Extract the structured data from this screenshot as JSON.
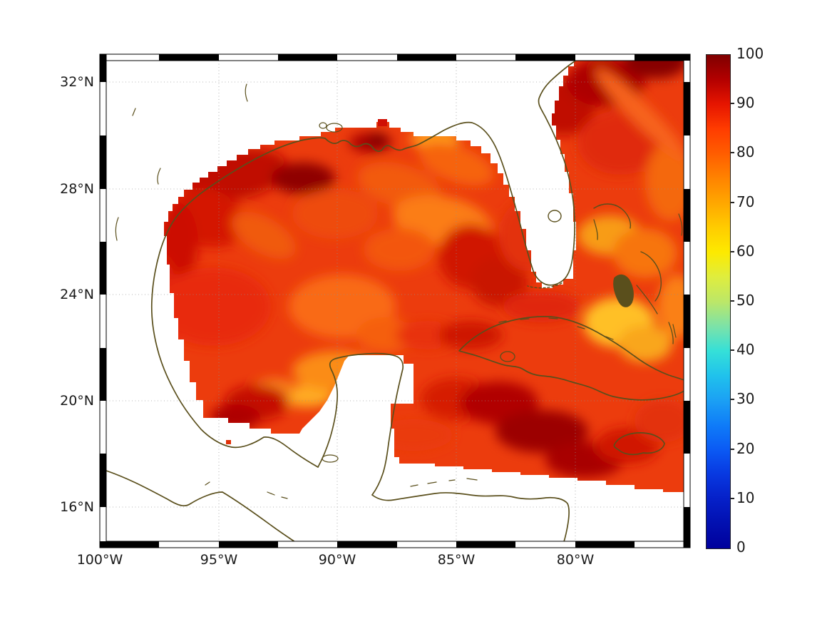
{
  "figure": {
    "background": "#ffffff",
    "description_note": "Geographic pcolor map of the Gulf of Mexico and northwest Caribbean with fancy black/white zebra frame and jet colorbar"
  },
  "axes": {
    "lat_labels": [
      "32°N",
      "28°N",
      "24°N",
      "20°N",
      "16°N"
    ],
    "lon_labels": [
      "100°W",
      "95°W",
      "90°W",
      "85°W",
      "80°W"
    ]
  },
  "colorbar": {
    "tick_labels": [
      "100",
      "90",
      "80",
      "70",
      "60",
      "50",
      "40",
      "30",
      "20",
      "10",
      "0"
    ],
    "min": 0,
    "max": 100,
    "colormap": "jet"
  },
  "colors": {
    "coastline": "#5a4f1c",
    "data_base": "#ec3c0d",
    "grid": "#979797",
    "label_text": "#1a1a1a",
    "frame_black": "#000000",
    "frame_white": "#ffffff"
  },
  "chart_data": {
    "type": "heatmap",
    "title": "",
    "xlabel": "",
    "ylabel": "",
    "x_axis_ticks": [
      "100°W",
      "95°W",
      "90°W",
      "85°W",
      "80°W"
    ],
    "y_axis_ticks": [
      "32°N",
      "28°N",
      "24°N",
      "20°N",
      "16°N"
    ],
    "colorbar_range": [
      0,
      100
    ],
    "colorbar_ticks": [
      0,
      10,
      20,
      30,
      40,
      50,
      60,
      70,
      80,
      90,
      100
    ],
    "colormap": "jet",
    "observed_field": [
      {
        "region": "central and western Gulf of Mexico",
        "approx_value": "80-95"
      },
      {
        "region": "nearshore NW Gulf off Texas-Louisiana",
        "approx_value": "90-100"
      },
      {
        "region": "Atlantic east of Florida / Gulf Stream",
        "approx_value": "90-100"
      },
      {
        "region": "south of Cuba toward Jamaica",
        "approx_value": "90-100"
      },
      {
        "region": "Bahama banks NE of Cuba",
        "approx_value": "65-75"
      },
      {
        "region": "southern Gulf near Campeche Bank",
        "approx_value": "70-80"
      },
      {
        "region": "land areas and south of ~17.5N",
        "approx_value": "no data (white)"
      }
    ]
  }
}
